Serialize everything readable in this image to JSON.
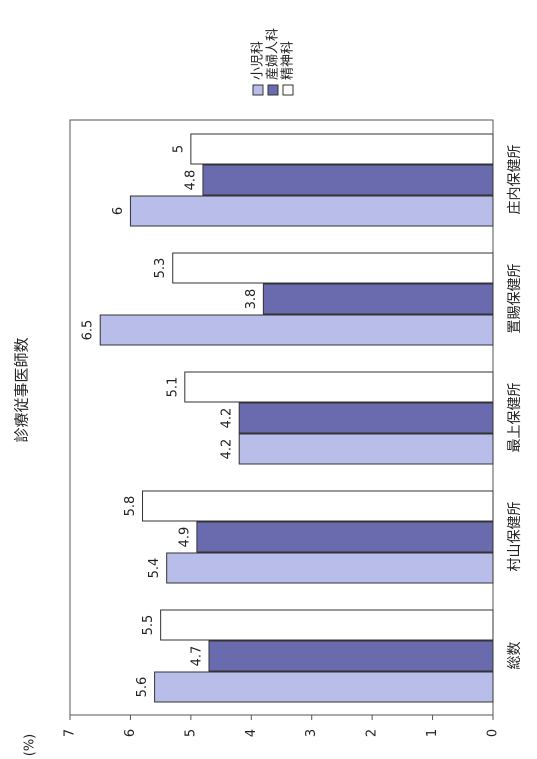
{
  "chart_data": {
    "type": "bar",
    "title": "診療従事医師数",
    "y_label": "(%)",
    "categories": [
      "総数",
      "村山保健所",
      "最上保健所",
      "置賜保健所",
      "庄内保健所"
    ],
    "series": [
      {
        "name": "小児科",
        "color": "#b9bde9",
        "values": [
          5.6,
          5.4,
          4.2,
          6.5,
          6
        ]
      },
      {
        "name": "産婦人科",
        "color": "#6a6aae",
        "values": [
          4.7,
          4.9,
          4.2,
          3.8,
          4.8
        ]
      },
      {
        "name": "精神科",
        "color": "#ffffff",
        "values": [
          5.5,
          5.8,
          5.1,
          5.3,
          5
        ]
      }
    ],
    "ylim": [
      0,
      7
    ],
    "yticks": [
      0,
      1,
      2,
      3,
      4,
      5,
      6,
      7
    ],
    "grid": false
  }
}
